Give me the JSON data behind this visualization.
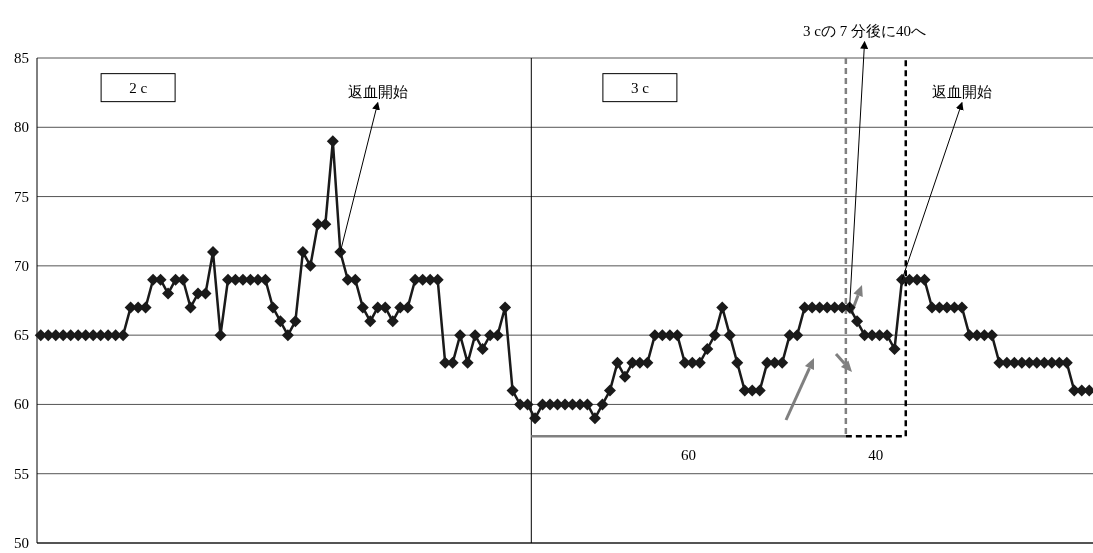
{
  "chart_data": {
    "type": "line",
    "marker": "diamond",
    "line_style": "solid",
    "grid": "y",
    "tick_labels": "y",
    "ylim": [
      50,
      85
    ],
    "yticks": [
      50,
      55,
      60,
      65,
      70,
      75,
      80,
      85
    ],
    "categories": [
      null,
      null,
      null,
      null,
      null,
      null,
      null,
      null,
      null,
      null,
      null,
      null,
      null,
      null,
      null,
      null,
      null,
      null,
      null,
      null,
      null,
      null,
      null,
      null,
      null,
      null,
      null,
      null,
      null,
      null,
      null,
      null,
      null,
      null,
      null,
      null,
      null,
      null,
      null,
      null,
      null,
      null,
      null,
      null,
      null,
      null,
      null,
      null,
      null,
      null,
      null,
      null,
      null,
      null,
      null,
      null,
      null,
      null,
      null,
      null,
      null,
      null,
      null,
      null,
      null,
      null,
      null,
      null,
      null,
      null,
      null,
      null,
      null,
      null,
      null,
      null,
      null,
      null,
      null,
      null,
      null,
      null,
      null,
      null,
      null,
      null,
      null,
      null,
      null,
      null,
      null,
      null,
      null,
      null,
      null,
      null,
      null,
      null,
      null,
      null,
      null,
      null,
      null,
      null,
      null,
      null,
      null,
      null,
      null,
      null,
      null,
      null,
      null,
      null,
      null,
      null,
      null,
      null,
      null,
      null,
      null,
      null,
      null,
      null,
      null,
      null,
      null,
      null,
      null,
      null,
      null,
      null,
      null,
      null,
      null,
      null,
      null,
      null,
      null,
      null,
      null
    ],
    "series": [
      {
        "color": "#1a1a1a",
        "values": [
          65,
          65,
          65,
          65,
          65,
          65,
          65,
          65,
          65,
          65,
          65,
          65,
          67,
          67,
          67,
          69,
          69,
          68,
          69,
          69,
          67,
          68,
          68,
          71,
          65,
          69,
          69,
          69,
          69,
          69,
          69,
          67,
          66,
          65,
          66,
          71,
          70,
          73,
          73,
          79,
          71,
          69,
          69,
          67,
          66,
          67,
          67,
          66,
          67,
          67,
          69,
          69,
          69,
          69,
          63,
          63,
          65,
          63,
          65,
          64,
          65,
          65,
          67,
          61,
          60,
          60,
          59,
          60,
          60,
          60,
          60,
          60,
          60,
          60,
          59,
          60,
          61,
          63,
          62,
          63,
          63,
          63,
          65,
          65,
          65,
          65,
          63,
          63,
          63,
          64,
          65,
          67,
          65,
          63,
          61,
          61,
          61,
          63,
          63,
          63,
          65,
          65,
          67,
          67,
          67,
          67,
          67,
          67,
          67,
          66,
          65,
          65,
          65,
          65,
          64,
          69,
          69,
          69,
          69,
          67,
          67,
          67,
          67,
          67,
          65,
          65,
          65,
          65,
          63,
          63,
          63,
          63,
          63,
          63,
          63,
          63,
          63,
          63,
          61,
          61,
          61
        ]
      }
    ],
    "annotations": [
      "2 c",
      "3 c",
      "返血開始",
      "3 cの 7 分後に40へ",
      "返血開始",
      "60",
      "40"
    ]
  }
}
